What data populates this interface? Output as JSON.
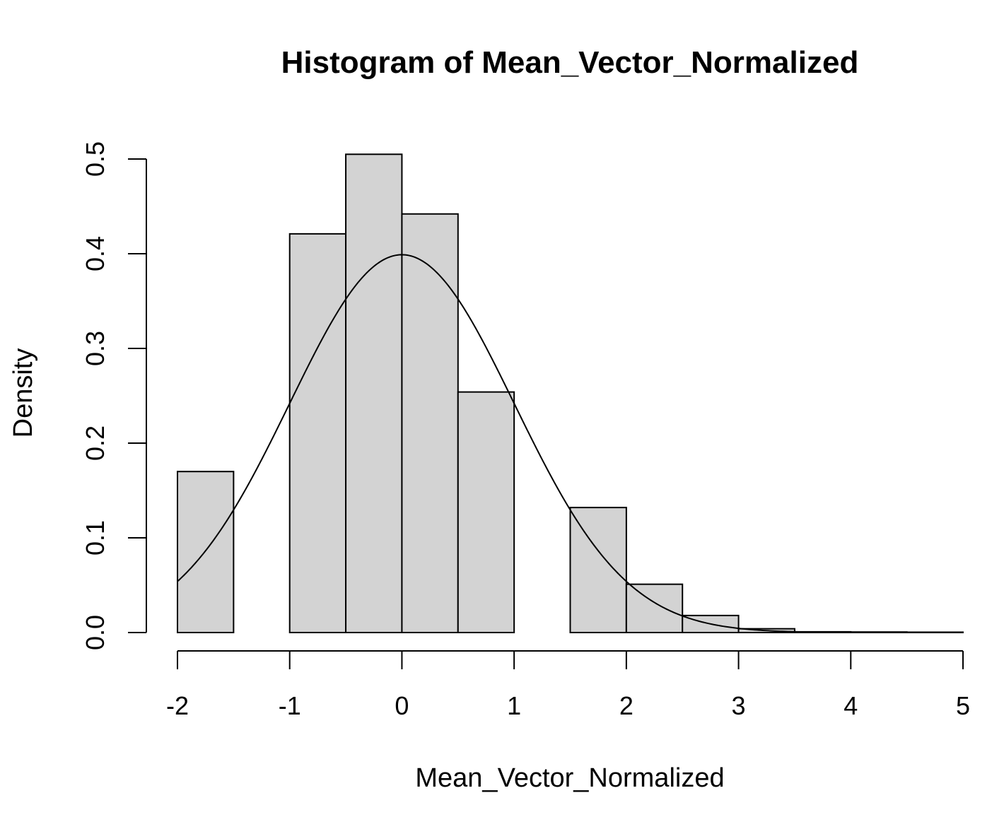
{
  "chart_data": {
    "type": "bar",
    "title": "Histogram of Mean_Vector_Normalized",
    "xlabel": "Mean_Vector_Normalized",
    "ylabel": "Density",
    "xlim": [
      -2,
      5
    ],
    "ylim": [
      0,
      0.5
    ],
    "x_ticks": [
      "-2",
      "-1",
      "0",
      "1",
      "2",
      "3",
      "4",
      "5"
    ],
    "y_ticks": [
      "0.0",
      "0.1",
      "0.2",
      "0.3",
      "0.4",
      "0.5"
    ],
    "bins": [
      {
        "x0": -2.0,
        "x1": -1.5,
        "density": 0.17
      },
      {
        "x0": -1.5,
        "x1": -1.0,
        "density": 0.0
      },
      {
        "x0": -1.0,
        "x1": -0.5,
        "density": 0.421
      },
      {
        "x0": -0.5,
        "x1": 0.0,
        "density": 0.505
      },
      {
        "x0": 0.0,
        "x1": 0.5,
        "density": 0.442
      },
      {
        "x0": 0.5,
        "x1": 1.0,
        "density": 0.254
      },
      {
        "x0": 1.0,
        "x1": 1.5,
        "density": 0.0
      },
      {
        "x0": 1.5,
        "x1": 2.0,
        "density": 0.132
      },
      {
        "x0": 2.0,
        "x1": 2.5,
        "density": 0.051
      },
      {
        "x0": 2.5,
        "x1": 3.0,
        "density": 0.018
      },
      {
        "x0": 3.0,
        "x1": 3.5,
        "density": 0.004
      },
      {
        "x0": 3.5,
        "x1": 4.0,
        "density": 0.0008
      },
      {
        "x0": 4.0,
        "x1": 4.5,
        "density": 0.0006
      },
      {
        "x0": 4.5,
        "x1": 5.0,
        "density": 0.0004
      }
    ],
    "overlay_curve": {
      "type": "normal_density",
      "mean": 0,
      "sd": 1
    },
    "grid": false,
    "bar_color": "#d3d3d3",
    "edge_color": "#000000"
  }
}
